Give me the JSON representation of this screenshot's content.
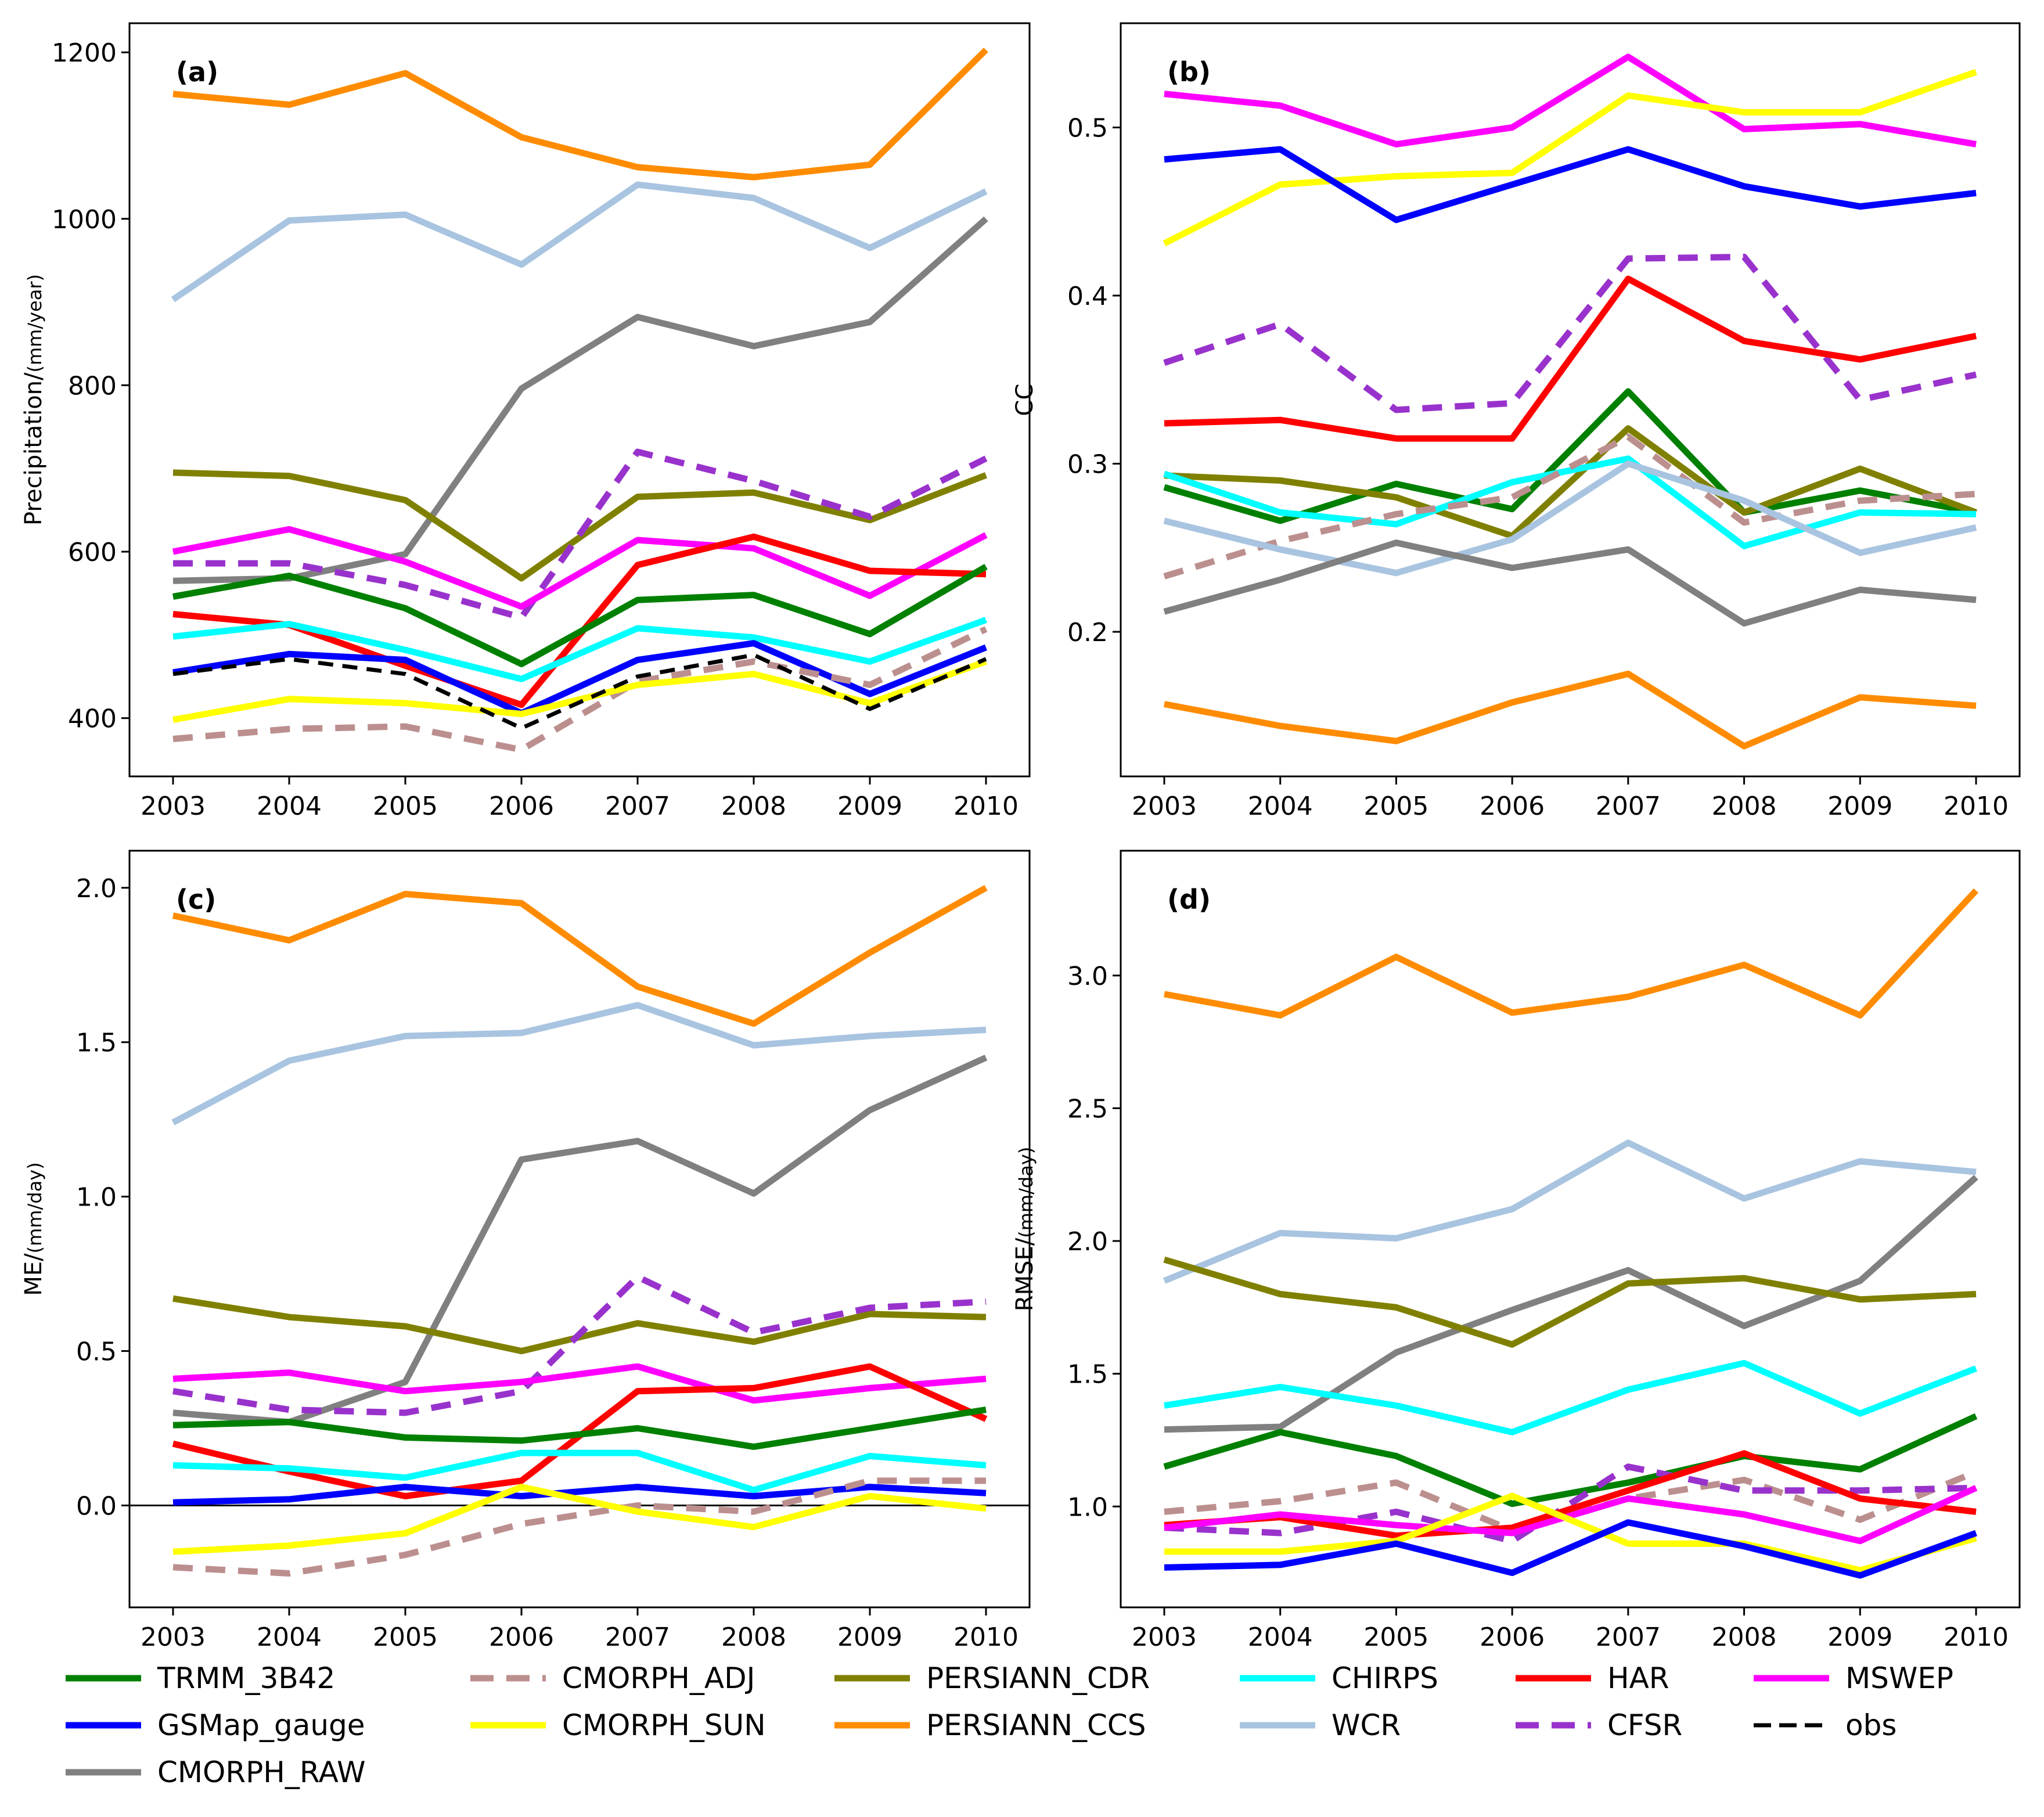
{
  "chart_data": [
    {
      "type": "line",
      "panel_label": "(a)",
      "ylabel": "Precipitation/",
      "ylabel_unit": "(mm/year)",
      "x": [
        2003,
        2004,
        2005,
        2006,
        2007,
        2008,
        2009,
        2010
      ],
      "xticks": [
        "2003",
        "2004",
        "2005",
        "2006",
        "2007",
        "2008",
        "2009",
        "2010"
      ],
      "ylim": [
        330,
        1235
      ],
      "yticks": [
        400,
        600,
        800,
        1000,
        1200
      ],
      "ytick_labels": [
        "400",
        "600",
        "800",
        "1000",
        "1200"
      ],
      "zero_line": false,
      "series": [
        {
          "key": "PERSIANN_CCS",
          "values": [
            1150,
            1137,
            1175,
            1098,
            1062,
            1050,
            1065,
            1203
          ]
        },
        {
          "key": "WCR",
          "values": [
            903,
            998,
            1005,
            945,
            1041,
            1025,
            965,
            1033
          ]
        },
        {
          "key": "CMORPH_RAW",
          "values": [
            565,
            568,
            597,
            796,
            882,
            847,
            876,
            1000
          ]
        },
        {
          "key": "PERSIANN_CDR",
          "values": [
            695,
            691,
            662,
            568,
            666,
            671,
            638,
            692
          ]
        },
        {
          "key": "CFSR",
          "values": [
            586,
            586,
            560,
            521,
            720,
            685,
            642,
            712
          ]
        },
        {
          "key": "MSWEP",
          "values": [
            600,
            627,
            588,
            534,
            614,
            604,
            547,
            620
          ]
        },
        {
          "key": "HAR",
          "values": [
            525,
            512,
            463,
            416,
            584,
            618,
            577,
            573
          ]
        },
        {
          "key": "TRMM_3B42",
          "values": [
            546,
            571,
            532,
            465,
            542,
            548,
            501,
            582
          ]
        },
        {
          "key": "CHIRPS",
          "values": [
            498,
            513,
            482,
            447,
            508,
            497,
            468,
            518
          ]
        },
        {
          "key": "GSMap_gauge",
          "values": [
            455,
            477,
            470,
            406,
            470,
            490,
            429,
            485
          ]
        },
        {
          "key": "CMORPH_ADJ",
          "values": [
            375,
            387,
            390,
            362,
            444,
            468,
            440,
            507
          ]
        },
        {
          "key": "CMORPH_SUN",
          "values": [
            398,
            423,
            418,
            405,
            440,
            453,
            418,
            468
          ]
        },
        {
          "key": "obs",
          "values": [
            453,
            471,
            453,
            388,
            450,
            476,
            411,
            471
          ]
        }
      ]
    },
    {
      "type": "line",
      "panel_label": "(b)",
      "ylabel": "CC",
      "ylabel_unit": "",
      "x": [
        2003,
        2004,
        2005,
        2006,
        2007,
        2008,
        2009,
        2010
      ],
      "xticks": [
        "2003",
        "2004",
        "2005",
        "2006",
        "2007",
        "2008",
        "2009",
        "2010"
      ],
      "ylim": [
        0.114,
        0.562
      ],
      "yticks": [
        0.2,
        0.3,
        0.4,
        0.5
      ],
      "ytick_labels": [
        "0.2",
        "0.3",
        "0.4",
        "0.5"
      ],
      "zero_line": false,
      "series": [
        {
          "key": "MSWEP",
          "values": [
            0.52,
            0.513,
            0.49,
            0.5,
            0.542,
            0.499,
            0.502,
            0.49
          ]
        },
        {
          "key": "CMORPH_SUN",
          "values": [
            0.431,
            0.466,
            0.471,
            0.473,
            0.519,
            0.509,
            0.509,
            0.533
          ]
        },
        {
          "key": "GSMap_gauge",
          "values": [
            0.481,
            0.487,
            0.445,
            0.466,
            0.487,
            0.465,
            0.453,
            0.461
          ]
        },
        {
          "key": "CFSR",
          "values": [
            0.36,
            0.383,
            0.332,
            0.336,
            0.422,
            0.423,
            0.338,
            0.353
          ]
        },
        {
          "key": "HAR",
          "values": [
            0.324,
            0.326,
            0.315,
            0.315,
            0.41,
            0.373,
            0.362,
            0.376
          ]
        },
        {
          "key": "TRMM_3B42",
          "values": [
            0.286,
            0.266,
            0.288,
            0.273,
            0.343,
            0.271,
            0.284,
            0.271
          ]
        },
        {
          "key": "PERSIANN_CDR",
          "values": [
            0.293,
            0.29,
            0.28,
            0.257,
            0.321,
            0.271,
            0.297,
            0.271
          ]
        },
        {
          "key": "CHIRPS",
          "values": [
            0.294,
            0.271,
            0.264,
            0.289,
            0.303,
            0.251,
            0.271,
            0.27
          ]
        },
        {
          "key": "CMORPH_ADJ",
          "values": [
            0.233,
            0.254,
            0.27,
            0.28,
            0.316,
            0.265,
            0.278,
            0.282
          ]
        },
        {
          "key": "WCR",
          "values": [
            0.266,
            0.249,
            0.235,
            0.255,
            0.3,
            0.278,
            0.247,
            0.262
          ]
        },
        {
          "key": "CMORPH_RAW",
          "values": [
            0.212,
            0.231,
            0.253,
            0.238,
            0.249,
            0.205,
            0.225,
            0.219
          ]
        },
        {
          "key": "PERSIANN_CCS",
          "values": [
            0.157,
            0.144,
            0.135,
            0.158,
            0.175,
            0.132,
            0.161,
            0.156
          ]
        }
      ]
    },
    {
      "type": "line",
      "panel_label": "(c)",
      "ylabel": "ME/",
      "ylabel_unit": "(mm/day)",
      "x": [
        2003,
        2004,
        2005,
        2006,
        2007,
        2008,
        2009,
        2010
      ],
      "xticks": [
        "2003",
        "2004",
        "2005",
        "2006",
        "2007",
        "2008",
        "2009",
        "2010"
      ],
      "ylim": [
        -0.33,
        2.12
      ],
      "yticks": [
        0.0,
        0.5,
        1.0,
        1.5,
        2.0
      ],
      "ytick_labels": [
        "0.0",
        "0.5",
        "1.0",
        "1.5",
        "2.0"
      ],
      "zero_line": true,
      "series": [
        {
          "key": "PERSIANN_CCS",
          "values": [
            1.91,
            1.83,
            1.98,
            1.95,
            1.68,
            1.56,
            1.79,
            2.0
          ]
        },
        {
          "key": "WCR",
          "values": [
            1.24,
            1.44,
            1.52,
            1.53,
            1.62,
            1.49,
            1.52,
            1.54
          ]
        },
        {
          "key": "CMORPH_RAW",
          "values": [
            0.3,
            0.27,
            0.4,
            1.12,
            1.18,
            1.01,
            1.28,
            1.45
          ]
        },
        {
          "key": "PERSIANN_CDR",
          "values": [
            0.67,
            0.61,
            0.58,
            0.5,
            0.59,
            0.53,
            0.62,
            0.61
          ]
        },
        {
          "key": "CFSR",
          "values": [
            0.37,
            0.31,
            0.3,
            0.37,
            0.74,
            0.56,
            0.64,
            0.66
          ]
        },
        {
          "key": "MSWEP",
          "values": [
            0.41,
            0.43,
            0.37,
            0.4,
            0.45,
            0.34,
            0.38,
            0.41
          ]
        },
        {
          "key": "HAR",
          "values": [
            0.2,
            0.11,
            0.03,
            0.08,
            0.37,
            0.38,
            0.45,
            0.28
          ]
        },
        {
          "key": "TRMM_3B42",
          "values": [
            0.26,
            0.27,
            0.22,
            0.21,
            0.25,
            0.19,
            0.25,
            0.31
          ]
        },
        {
          "key": "CHIRPS",
          "values": [
            0.13,
            0.12,
            0.09,
            0.17,
            0.17,
            0.05,
            0.16,
            0.13
          ]
        },
        {
          "key": "GSMap_gauge",
          "values": [
            0.01,
            0.02,
            0.06,
            0.03,
            0.06,
            0.03,
            0.06,
            0.04
          ]
        },
        {
          "key": "CMORPH_ADJ",
          "values": [
            -0.2,
            -0.22,
            -0.16,
            -0.06,
            0.0,
            -0.02,
            0.08,
            0.08
          ]
        },
        {
          "key": "CMORPH_SUN",
          "values": [
            -0.15,
            -0.13,
            -0.09,
            0.06,
            -0.02,
            -0.07,
            0.03,
            -0.01
          ]
        }
      ]
    },
    {
      "type": "line",
      "panel_label": "(d)",
      "ylabel": "RMSE/",
      "ylabel_unit": "(mm/day)",
      "x": [
        2003,
        2004,
        2005,
        2006,
        2007,
        2008,
        2009,
        2010
      ],
      "xticks": [
        "2003",
        "2004",
        "2005",
        "2006",
        "2007",
        "2008",
        "2009",
        "2010"
      ],
      "ylim": [
        0.62,
        3.47
      ],
      "yticks": [
        1.0,
        1.5,
        2.0,
        2.5,
        3.0
      ],
      "ytick_labels": [
        "1.0",
        "1.5",
        "2.0",
        "2.5",
        "3.0"
      ],
      "zero_line": false,
      "series": [
        {
          "key": "PERSIANN_CCS",
          "values": [
            2.93,
            2.85,
            3.07,
            2.86,
            2.92,
            3.04,
            2.85,
            3.32
          ]
        },
        {
          "key": "WCR",
          "values": [
            1.85,
            2.03,
            2.01,
            2.12,
            2.37,
            2.16,
            2.3,
            2.26
          ]
        },
        {
          "key": "CMORPH_RAW",
          "values": [
            1.29,
            1.3,
            1.58,
            1.74,
            1.89,
            1.68,
            1.85,
            2.24
          ]
        },
        {
          "key": "PERSIANN_CDR",
          "values": [
            1.93,
            1.8,
            1.75,
            1.61,
            1.84,
            1.86,
            1.78,
            1.8
          ]
        },
        {
          "key": "CHIRPS",
          "values": [
            1.38,
            1.45,
            1.38,
            1.28,
            1.44,
            1.54,
            1.35,
            1.52
          ]
        },
        {
          "key": "TRMM_3B42",
          "values": [
            1.15,
            1.28,
            1.19,
            1.01,
            1.09,
            1.19,
            1.14,
            1.34
          ]
        },
        {
          "key": "CMORPH_ADJ",
          "values": [
            0.98,
            1.02,
            1.09,
            0.91,
            1.03,
            1.1,
            0.95,
            1.13
          ]
        },
        {
          "key": "CFSR",
          "values": [
            0.92,
            0.9,
            0.98,
            0.87,
            1.15,
            1.06,
            1.06,
            1.07
          ]
        },
        {
          "key": "HAR",
          "values": [
            0.93,
            0.96,
            0.89,
            0.92,
            1.06,
            1.2,
            1.03,
            0.98
          ]
        },
        {
          "key": "MSWEP",
          "values": [
            0.92,
            0.97,
            0.93,
            0.9,
            1.03,
            0.97,
            0.87,
            1.07
          ]
        },
        {
          "key": "CMORPH_SUN",
          "values": [
            0.83,
            0.83,
            0.87,
            1.04,
            0.86,
            0.86,
            0.76,
            0.88
          ]
        },
        {
          "key": "GSMap_gauge",
          "values": [
            0.77,
            0.78,
            0.86,
            0.75,
            0.94,
            0.85,
            0.74,
            0.9
          ]
        }
      ]
    }
  ],
  "series_styles": {
    "TRMM_3B42": {
      "color": "#008000",
      "dash": "solid"
    },
    "GSMap_gauge": {
      "color": "#0000ff",
      "dash": "solid"
    },
    "CMORPH_RAW": {
      "color": "#808080",
      "dash": "solid"
    },
    "CMORPH_ADJ": {
      "color": "#bc8f8f",
      "dash": "dashed"
    },
    "CMORPH_SUN": {
      "color": "#ffff00",
      "dash": "solid"
    },
    "PERSIANN_CDR": {
      "color": "#808000",
      "dash": "solid"
    },
    "PERSIANN_CCS": {
      "color": "#ff8c00",
      "dash": "solid"
    },
    "CHIRPS": {
      "color": "#00ffff",
      "dash": "solid"
    },
    "WCR": {
      "color": "#a8c4e0",
      "dash": "solid"
    },
    "HAR": {
      "color": "#ff0000",
      "dash": "solid"
    },
    "CFSR": {
      "color": "#9932cc",
      "dash": "dashed"
    },
    "MSWEP": {
      "color": "#ff00ff",
      "dash": "solid"
    },
    "obs": {
      "color": "#000000",
      "dash": "dashed"
    }
  },
  "legend": {
    "position": "bottom",
    "items": [
      {
        "key": "TRMM_3B42",
        "label": "TRMM_3B42"
      },
      {
        "key": "CMORPH_ADJ",
        "label": "CMORPH_ADJ"
      },
      {
        "key": "PERSIANN_CDR",
        "label": "PERSIANN_CDR"
      },
      {
        "key": "CHIRPS",
        "label": "CHIRPS"
      },
      {
        "key": "HAR",
        "label": "HAR"
      },
      {
        "key": "MSWEP",
        "label": "MSWEP"
      },
      {
        "key": "GSMap_gauge",
        "label": "GSMap_gauge"
      },
      {
        "key": "CMORPH_SUN",
        "label": "CMORPH_SUN"
      },
      {
        "key": "PERSIANN_CCS",
        "label": "PERSIANN_CCS"
      },
      {
        "key": "WCR",
        "label": "WCR"
      },
      {
        "key": "CFSR",
        "label": "CFSR"
      },
      {
        "key": "obs",
        "label": "obs"
      },
      {
        "key": "CMORPH_RAW",
        "label": "CMORPH_RAW"
      }
    ]
  }
}
